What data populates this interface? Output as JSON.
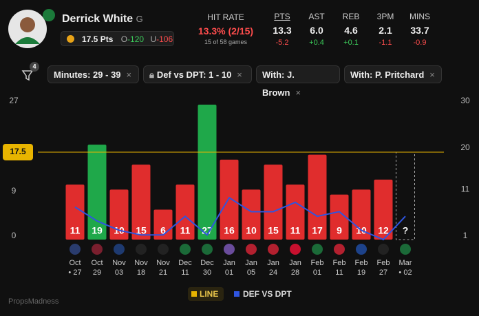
{
  "player": {
    "name": "Derrick White",
    "position": "G",
    "line": "17.5 Pts",
    "over_label": "O",
    "over_odds": "-120",
    "under_label": "U",
    "under_odds": "-106"
  },
  "hit_rate": {
    "label": "HIT RATE",
    "value": "13.3% (2/15)",
    "sample": "15 of 58 games"
  },
  "stats": {
    "headers": [
      "PTS",
      "AST",
      "REB",
      "3PM",
      "MINS"
    ],
    "values": [
      "13.3",
      "6.0",
      "4.6",
      "2.1",
      "33.7"
    ],
    "diffs": [
      "-5.2",
      "+0.4",
      "+0.1",
      "-1.1",
      "-0.9"
    ]
  },
  "filters": {
    "count": "4",
    "items": [
      "Minutes: 29 - 39",
      "Def vs DPT: 1 - 10",
      "With: J. Brown",
      "With: P. Pritchard"
    ]
  },
  "chart_data": {
    "type": "bar",
    "categories": [
      {
        "month": "Oct",
        "day": "• 27"
      },
      {
        "month": "Oct",
        "day": "29"
      },
      {
        "month": "Nov",
        "day": "03"
      },
      {
        "month": "Nov",
        "day": "18"
      },
      {
        "month": "Nov",
        "day": "21"
      },
      {
        "month": "Dec",
        "day": "11"
      },
      {
        "month": "Dec",
        "day": "30"
      },
      {
        "month": "Jan",
        "day": "01"
      },
      {
        "month": "Jan",
        "day": "05"
      },
      {
        "month": "Jan",
        "day": "24"
      },
      {
        "month": "Jan",
        "day": "28"
      },
      {
        "month": "Feb",
        "day": "01"
      },
      {
        "month": "Feb",
        "day": "11"
      },
      {
        "month": "Feb",
        "day": "19"
      },
      {
        "month": "Feb",
        "day": "27"
      },
      {
        "month": "Mar",
        "day": "• 02"
      }
    ],
    "values": [
      11,
      19,
      10,
      15,
      6,
      11,
      27,
      16,
      10,
      15,
      11,
      17,
      9,
      10,
      12,
      null
    ],
    "pending_label": "?",
    "over_color": "#1fa84a",
    "under_color": "#e02d2d",
    "line": {
      "name": "LINE",
      "value": 17.5,
      "color": "#e8b400"
    },
    "series": [
      {
        "name": "DEF VS DPT",
        "color": "#2f55e0",
        "axis": "y2",
        "values": [
          8,
          5,
          3,
          2,
          2,
          6,
          2,
          10,
          7,
          7,
          9,
          6,
          7,
          3,
          1,
          6
        ]
      }
    ],
    "ylim": [
      0,
      27
    ],
    "yticks": [
      0,
      9,
      27
    ],
    "y2lim": [
      1,
      30
    ],
    "y2ticks": [
      1,
      11,
      20,
      30
    ]
  },
  "watermark": "PropsMadness"
}
